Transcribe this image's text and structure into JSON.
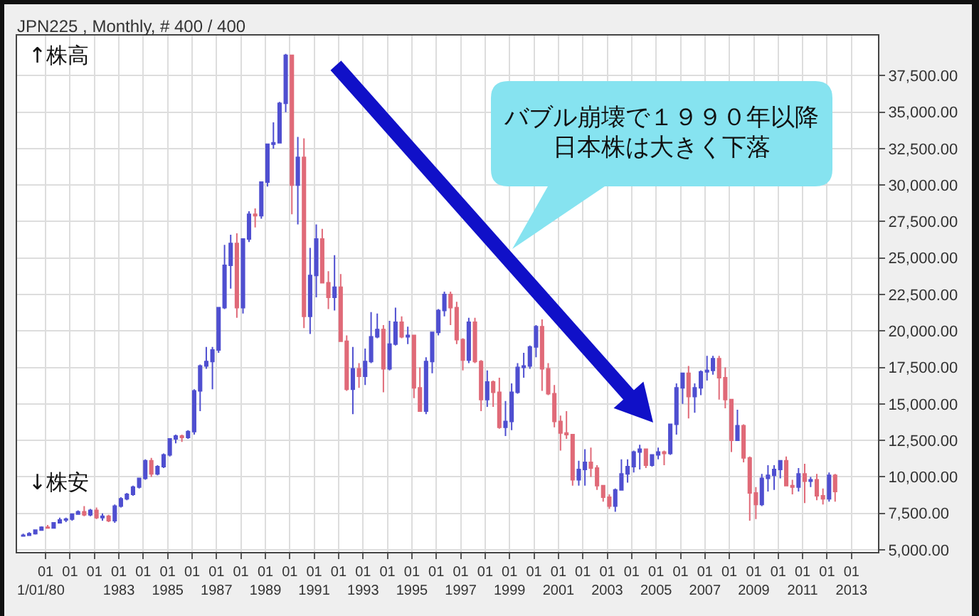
{
  "chart_data": {
    "type": "candlestick",
    "title": "JPN225 , Monthly, # 400 / 400",
    "x": [
      "1979-02",
      "1979-05",
      "1979-08",
      "1979-11",
      "1980-02",
      "1980-05",
      "1980-08",
      "1980-11",
      "1981-02",
      "1981-05",
      "1981-08",
      "1981-11",
      "1982-02",
      "1982-05",
      "1982-08",
      "1982-11",
      "1983-02",
      "1983-05",
      "1983-08",
      "1983-11",
      "1984-02",
      "1984-05",
      "1984-08",
      "1984-11",
      "1985-02",
      "1985-05",
      "1985-08",
      "1985-11",
      "1986-02",
      "1986-05",
      "1986-08",
      "1986-11",
      "1987-02",
      "1987-05",
      "1987-08",
      "1987-11",
      "1988-02",
      "1988-05",
      "1988-08",
      "1988-11",
      "1989-02",
      "1989-05",
      "1989-08",
      "1989-11",
      "1990-02",
      "1990-05",
      "1990-08",
      "1990-11",
      "1991-02",
      "1991-05",
      "1991-08",
      "1991-11",
      "1992-02",
      "1992-05",
      "1992-08",
      "1992-11",
      "1993-02",
      "1993-05",
      "1993-08",
      "1993-11",
      "1994-02",
      "1994-05",
      "1994-08",
      "1994-11",
      "1995-02",
      "1995-05",
      "1995-08",
      "1995-11",
      "1996-02",
      "1996-05",
      "1996-08",
      "1996-11",
      "1997-02",
      "1997-05",
      "1997-08",
      "1997-11",
      "1998-02",
      "1998-05",
      "1998-08",
      "1998-11",
      "1999-02",
      "1999-05",
      "1999-08",
      "1999-11",
      "2000-02",
      "2000-05",
      "2000-08",
      "2000-11",
      "2001-02",
      "2001-05",
      "2001-08",
      "2001-11",
      "2002-02",
      "2002-05",
      "2002-08",
      "2002-11",
      "2003-02",
      "2003-05",
      "2003-08",
      "2003-11",
      "2004-02",
      "2004-05",
      "2004-08",
      "2004-11",
      "2005-02",
      "2005-05",
      "2005-08",
      "2005-11",
      "2006-02",
      "2006-05",
      "2006-08",
      "2006-11",
      "2007-02",
      "2007-05",
      "2007-08",
      "2007-11",
      "2008-02",
      "2008-05",
      "2008-08",
      "2008-11",
      "2009-02",
      "2009-05",
      "2009-08",
      "2009-11",
      "2010-02",
      "2010-05",
      "2010-08",
      "2010-11",
      "2011-02",
      "2011-05",
      "2011-08",
      "2011-11",
      "2012-02",
      "2012-05"
    ],
    "ohlc": [
      [
        5950,
        6100,
        5900,
        6000
      ],
      [
        6000,
        6200,
        5950,
        6100
      ],
      [
        6100,
        6400,
        6050,
        6350
      ],
      [
        6350,
        6600,
        6300,
        6550
      ],
      [
        6550,
        6700,
        6450,
        6500
      ],
      [
        6500,
        6900,
        6450,
        6850
      ],
      [
        6850,
        7200,
        6800,
        7050
      ],
      [
        7050,
        7200,
        6900,
        7100
      ],
      [
        7100,
        7500,
        7000,
        7450
      ],
      [
        7450,
        7700,
        7400,
        7600
      ],
      [
        7600,
        8000,
        7300,
        7400
      ],
      [
        7400,
        7800,
        7300,
        7700
      ],
      [
        7700,
        7900,
        7100,
        7200
      ],
      [
        7200,
        7500,
        7000,
        7300
      ],
      [
        7300,
        7400,
        6900,
        7000
      ],
      [
        7000,
        8100,
        6850,
        8000
      ],
      [
        8000,
        8600,
        7900,
        8500
      ],
      [
        8500,
        8900,
        8400,
        8800
      ],
      [
        8800,
        9400,
        8700,
        9300
      ],
      [
        9300,
        9900,
        9200,
        9900
      ],
      [
        9900,
        11200,
        9800,
        11100
      ],
      [
        11100,
        11300,
        10000,
        10200
      ],
      [
        10200,
        10800,
        10100,
        10700
      ],
      [
        10700,
        11600,
        10600,
        11500
      ],
      [
        11500,
        12600,
        11400,
        12600
      ],
      [
        12600,
        12900,
        12300,
        12800
      ],
      [
        12800,
        12900,
        12400,
        12700
      ],
      [
        12700,
        13200,
        12600,
        13100
      ],
      [
        13100,
        16000,
        12900,
        15900
      ],
      [
        15900,
        17700,
        14500,
        17600
      ],
      [
        17600,
        18900,
        17400,
        17900
      ],
      [
        17900,
        18900,
        16000,
        18700
      ],
      [
        18700,
        21600,
        18500,
        21600
      ],
      [
        21600,
        25900,
        21500,
        24500
      ],
      [
        24500,
        26600,
        22900,
        26000
      ],
      [
        26000,
        26700,
        20900,
        21600
      ],
      [
        21600,
        26300,
        21200,
        26300
      ],
      [
        26300,
        28200,
        26100,
        28000
      ],
      [
        28000,
        28400,
        27100,
        27900
      ],
      [
        27900,
        30200,
        27700,
        30200
      ],
      [
        30200,
        32800,
        29900,
        32800
      ],
      [
        32800,
        34300,
        32500,
        32900
      ],
      [
        32900,
        35700,
        32900,
        35600
      ],
      [
        35600,
        39000,
        35000,
        38900
      ],
      [
        38900,
        38900,
        28000,
        30000
      ],
      [
        30000,
        33300,
        27300,
        31900
      ],
      [
        31900,
        33200,
        20200,
        21000
      ],
      [
        21000,
        25700,
        19800,
        23800
      ],
      [
        23800,
        27300,
        22300,
        26300
      ],
      [
        26300,
        27000,
        23300,
        23300
      ],
      [
        23300,
        24100,
        21500,
        22300
      ],
      [
        22300,
        25200,
        21400,
        23000
      ],
      [
        23000,
        23900,
        19300,
        19300
      ],
      [
        19300,
        19700,
        15900,
        16000
      ],
      [
        16000,
        18900,
        14300,
        17400
      ],
      [
        17400,
        17800,
        16100,
        16900
      ],
      [
        16900,
        18800,
        16300,
        17900
      ],
      [
        17900,
        21300,
        17800,
        19600
      ],
      [
        19600,
        21200,
        19500,
        20100
      ],
      [
        20100,
        20400,
        15800,
        17400
      ],
      [
        17400,
        20700,
        17300,
        19100
      ],
      [
        19100,
        21600,
        19000,
        20600
      ],
      [
        20600,
        21000,
        19500,
        19600
      ],
      [
        19600,
        20300,
        19100,
        19700
      ],
      [
        19700,
        19700,
        15400,
        16100
      ],
      [
        16100,
        17500,
        14500,
        14500
      ],
      [
        14500,
        18200,
        14300,
        17900
      ],
      [
        17900,
        19900,
        17100,
        19900
      ],
      [
        19900,
        21500,
        19700,
        21400
      ],
      [
        21400,
        22700,
        21000,
        22500
      ],
      [
        22500,
        22700,
        20400,
        21600
      ],
      [
        21600,
        22000,
        19100,
        19400
      ],
      [
        19400,
        19500,
        17300,
        18000
      ],
      [
        18000,
        20900,
        17800,
        20600
      ],
      [
        20600,
        20900,
        17800,
        17900
      ],
      [
        17900,
        18000,
        14500,
        15300
      ],
      [
        15300,
        17300,
        14800,
        16500
      ],
      [
        16500,
        16600,
        14800,
        15800
      ],
      [
        15800,
        16800,
        13300,
        13400
      ],
      [
        13400,
        15200,
        12800,
        13800
      ],
      [
        13800,
        16400,
        13200,
        15800
      ],
      [
        15800,
        17800,
        15700,
        17500
      ],
      [
        17500,
        18500,
        16800,
        17600
      ],
      [
        17600,
        19000,
        17400,
        18900
      ],
      [
        18900,
        20400,
        18200,
        20300
      ],
      [
        20300,
        20800,
        15900,
        17400
      ],
      [
        17400,
        17800,
        15600,
        15700
      ],
      [
        15700,
        16300,
        13400,
        13800
      ],
      [
        13800,
        14200,
        11800,
        13000
      ],
      [
        13000,
        14500,
        12600,
        12900
      ],
      [
        12900,
        12900,
        9400,
        9800
      ],
      [
        9800,
        11100,
        9400,
        10500
      ],
      [
        10500,
        11900,
        9400,
        11000
      ],
      [
        11000,
        12000,
        10000,
        10600
      ],
      [
        10600,
        10800,
        9100,
        9400
      ],
      [
        9400,
        9400,
        8300,
        8600
      ],
      [
        8600,
        8800,
        7800,
        8000
      ],
      [
        8000,
        9200,
        7600,
        9100
      ],
      [
        9100,
        11200,
        9100,
        10200
      ],
      [
        10200,
        11200,
        9600,
        10700
      ],
      [
        10700,
        11800,
        10300,
        11700
      ],
      [
        11700,
        12200,
        10500,
        11900
      ],
      [
        11900,
        11900,
        10600,
        10800
      ],
      [
        10800,
        11500,
        10700,
        11500
      ],
      [
        11500,
        12000,
        11200,
        11700
      ],
      [
        11700,
        11800,
        10800,
        11600
      ],
      [
        11600,
        13600,
        11500,
        13600
      ],
      [
        13600,
        16400,
        12900,
        16100
      ],
      [
        16100,
        17100,
        15000,
        17100
      ],
      [
        17100,
        17600,
        14000,
        15500
      ],
      [
        15500,
        16400,
        14400,
        16100
      ],
      [
        16100,
        17300,
        15600,
        17200
      ],
      [
        17200,
        18300,
        16600,
        17300
      ],
      [
        17300,
        18300,
        17000,
        18100
      ],
      [
        18100,
        18300,
        15300,
        16800
      ],
      [
        16800,
        17500,
        14700,
        15300
      ],
      [
        15300,
        15300,
        11700,
        12500
      ],
      [
        12500,
        14600,
        12500,
        13500
      ],
      [
        13500,
        13600,
        11000,
        11300
      ],
      [
        11300,
        11400,
        7000,
        8900
      ],
      [
        8900,
        9300,
        7100,
        8100
      ],
      [
        8100,
        10200,
        8000,
        9900
      ],
      [
        9900,
        10800,
        9000,
        10100
      ],
      [
        10100,
        10800,
        9100,
        10500
      ],
      [
        10500,
        11100,
        9900,
        11100
      ],
      [
        11100,
        11400,
        9400,
        9400
      ],
      [
        9400,
        9800,
        8800,
        9300
      ],
      [
        9300,
        10600,
        9000,
        10200
      ],
      [
        10200,
        10900,
        8200,
        9700
      ],
      [
        9700,
        10000,
        9300,
        9800
      ],
      [
        9800,
        10200,
        8400,
        8700
      ],
      [
        8700,
        9200,
        8100,
        8500
      ],
      [
        8500,
        10300,
        8300,
        10100
      ],
      [
        10100,
        10200,
        8300,
        9000
      ]
    ],
    "colors": [
      "#4f4fd0",
      "#4f4fd0",
      "#4f4fd0",
      "#4f4fd0",
      "#e06a78",
      "#4f4fd0",
      "#4f4fd0",
      "#4f4fd0",
      "#4f4fd0",
      "#4f4fd0",
      "#e06a78",
      "#4f4fd0",
      "#e06a78",
      "#4f4fd0",
      "#e06a78",
      "#4f4fd0",
      "#4f4fd0",
      "#4f4fd0",
      "#4f4fd0",
      "#4f4fd0",
      "#4f4fd0",
      "#e06a78",
      "#4f4fd0",
      "#4f4fd0",
      "#4f4fd0",
      "#4f4fd0",
      "#e06a78",
      "#4f4fd0",
      "#4f4fd0",
      "#4f4fd0",
      "#4f4fd0",
      "#4f4fd0",
      "#4f4fd0",
      "#4f4fd0",
      "#4f4fd0",
      "#e06a78",
      "#4f4fd0",
      "#4f4fd0",
      "#e06a78",
      "#4f4fd0",
      "#4f4fd0",
      "#4f4fd0",
      "#4f4fd0",
      "#4f4fd0",
      "#e06a78",
      "#4f4fd0",
      "#e06a78",
      "#4f4fd0",
      "#4f4fd0",
      "#e06a78",
      "#e06a78",
      "#4f4fd0",
      "#e06a78",
      "#e06a78",
      "#4f4fd0",
      "#e06a78",
      "#4f4fd0",
      "#4f4fd0",
      "#4f4fd0",
      "#e06a78",
      "#4f4fd0",
      "#4f4fd0",
      "#e06a78",
      "#4f4fd0",
      "#e06a78",
      "#e06a78",
      "#4f4fd0",
      "#4f4fd0",
      "#4f4fd0",
      "#4f4fd0",
      "#e06a78",
      "#e06a78",
      "#e06a78",
      "#4f4fd0",
      "#e06a78",
      "#e06a78",
      "#4f4fd0",
      "#e06a78",
      "#e06a78",
      "#4f4fd0",
      "#4f4fd0",
      "#4f4fd0",
      "#4f4fd0",
      "#4f4fd0",
      "#4f4fd0",
      "#e06a78",
      "#e06a78",
      "#e06a78",
      "#e06a78",
      "#e06a78",
      "#e06a78",
      "#4f4fd0",
      "#4f4fd0",
      "#e06a78",
      "#e06a78",
      "#e06a78",
      "#e06a78",
      "#4f4fd0",
      "#4f4fd0",
      "#4f4fd0",
      "#4f4fd0",
      "#4f4fd0",
      "#e06a78",
      "#4f4fd0",
      "#4f4fd0",
      "#e06a78",
      "#4f4fd0",
      "#4f4fd0",
      "#4f4fd0",
      "#e06a78",
      "#4f4fd0",
      "#4f4fd0",
      "#4f4fd0",
      "#4f4fd0",
      "#e06a78",
      "#e06a78",
      "#e06a78",
      "#4f4fd0",
      "#e06a78",
      "#e06a78",
      "#e06a78",
      "#4f4fd0",
      "#4f4fd0",
      "#4f4fd0",
      "#4f4fd0",
      "#e06a78",
      "#e06a78",
      "#4f4fd0",
      "#e06a78",
      "#4f4fd0",
      "#e06a78",
      "#e06a78",
      "#4f4fd0",
      "#e06a78"
    ],
    "xlim": [
      "1978-11",
      "2014-02"
    ],
    "xticks": [
      {
        "value": "1980-01",
        "label": "01\n1/01/80"
      },
      {
        "value": "1981-01",
        "label": "01"
      },
      {
        "value": "1982-01",
        "label": "01"
      },
      {
        "value": "1983-01",
        "label": "01\n1983"
      },
      {
        "value": "1984-01",
        "label": "01"
      },
      {
        "value": "1985-01",
        "label": "01\n1985"
      },
      {
        "value": "1986-01",
        "label": "01"
      },
      {
        "value": "1987-01",
        "label": "01\n1987"
      },
      {
        "value": "1988-01",
        "label": "01"
      },
      {
        "value": "1989-01",
        "label": "01\n1989"
      },
      {
        "value": "1990-01",
        "label": "01"
      },
      {
        "value": "1991-01",
        "label": "01\n1991"
      },
      {
        "value": "1992-01",
        "label": "01"
      },
      {
        "value": "1993-01",
        "label": "01\n1993"
      },
      {
        "value": "1994-01",
        "label": "01"
      },
      {
        "value": "1995-01",
        "label": "01\n1995"
      },
      {
        "value": "1996-01",
        "label": "01"
      },
      {
        "value": "1997-01",
        "label": "01\n1997"
      },
      {
        "value": "1998-01",
        "label": "01"
      },
      {
        "value": "1999-01",
        "label": "01\n1999"
      },
      {
        "value": "2000-01",
        "label": "01"
      },
      {
        "value": "2001-01",
        "label": "01\n2001"
      },
      {
        "value": "2002-01",
        "label": "01"
      },
      {
        "value": "2003-01",
        "label": "01\n2003"
      },
      {
        "value": "2004-01",
        "label": "01"
      },
      {
        "value": "2005-01",
        "label": "01\n2005"
      },
      {
        "value": "2006-01",
        "label": "01"
      },
      {
        "value": "2007-01",
        "label": "01\n2007"
      },
      {
        "value": "2008-01",
        "label": "01"
      },
      {
        "value": "2009-01",
        "label": "01\n2009"
      },
      {
        "value": "2010-01",
        "label": "01"
      },
      {
        "value": "2011-01",
        "label": "01\n2011"
      },
      {
        "value": "2012-01",
        "label": "01"
      },
      {
        "value": "2013-01",
        "label": "01\n2013"
      }
    ],
    "ylim": [
      4850,
      40250
    ],
    "yticks": [
      {
        "value": 5000,
        "label": "5,000.00"
      },
      {
        "value": 7500,
        "label": "7,500.00"
      },
      {
        "value": 10000,
        "label": "10,000.00"
      },
      {
        "value": 12500,
        "label": "12,500.00"
      },
      {
        "value": 15000,
        "label": "15,000.00"
      },
      {
        "value": 17500,
        "label": "17,500.00"
      },
      {
        "value": 20000,
        "label": "20,000.00"
      },
      {
        "value": 22500,
        "label": "22,500.00"
      },
      {
        "value": 25000,
        "label": "25,000.00"
      },
      {
        "value": 27500,
        "label": "27,500.00"
      },
      {
        "value": 30000,
        "label": "30,000.00"
      },
      {
        "value": 32500,
        "label": "32,500.00"
      },
      {
        "value": 35000,
        "label": "35,000.00"
      },
      {
        "value": 37500,
        "label": "37,500.00"
      }
    ],
    "grid": true,
    "annotations": [
      "↑株高",
      "↓株安",
      "バブル崩壊で１９９０年以降日本株は大きく下落"
    ]
  }
}
